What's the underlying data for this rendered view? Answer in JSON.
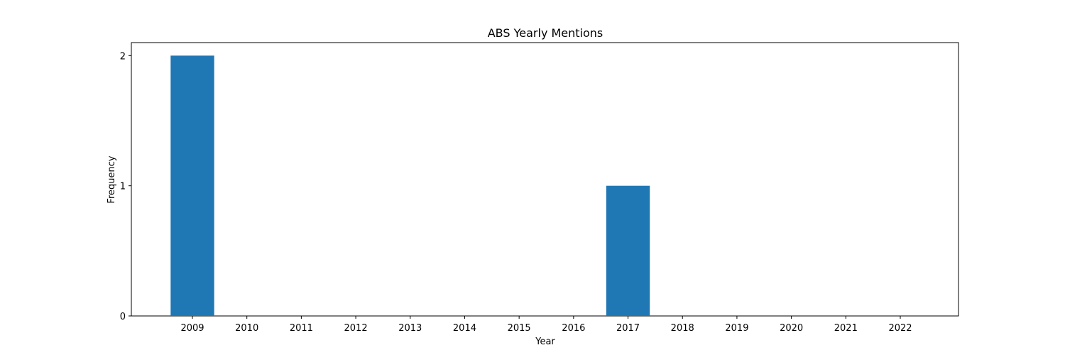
{
  "chart_data": {
    "type": "bar",
    "title": "ABS Yearly Mentions",
    "xlabel": "Year",
    "ylabel": "Frequency",
    "categories": [
      "2009",
      "2010",
      "2011",
      "2012",
      "2013",
      "2014",
      "2015",
      "2016",
      "2017",
      "2018",
      "2019",
      "2020",
      "2021",
      "2022"
    ],
    "values": [
      2,
      0,
      0,
      0,
      0,
      0,
      0,
      0,
      1,
      0,
      0,
      0,
      0,
      0
    ],
    "yticks": [
      "0",
      "1",
      "2"
    ],
    "ylim": [
      0,
      2.1
    ],
    "grid": false,
    "bar_color": "#1f77b4"
  }
}
